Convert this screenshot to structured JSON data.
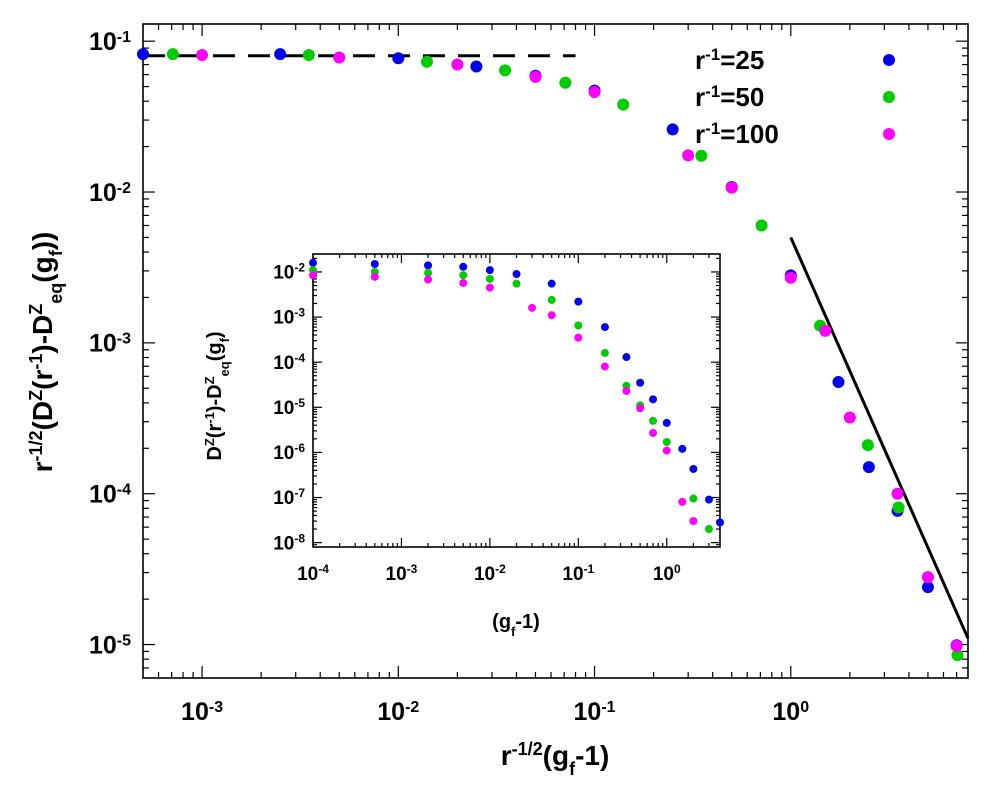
{
  "chart_data": [
    {
      "type": "scatter",
      "xscale": "log",
      "yscale": "log",
      "xlim": [
        0.0005,
        8
      ],
      "ylim": [
        6e-06,
        0.13
      ],
      "xticks": [
        0.001,
        0.01,
        0.1,
        1
      ],
      "xtick_labels": [
        {
          "base": "10",
          "exp": "-3"
        },
        {
          "base": "10",
          "exp": "-2"
        },
        {
          "base": "10",
          "exp": "-1"
        },
        {
          "base": "10",
          "exp": "0"
        }
      ],
      "yticks": [
        1e-05,
        0.0001,
        0.001,
        0.01,
        0.1
      ],
      "ytick_labels": [
        {
          "base": "10",
          "exp": "-5"
        },
        {
          "base": "10",
          "exp": "-4"
        },
        {
          "base": "10",
          "exp": "-3"
        },
        {
          "base": "10",
          "exp": "-2"
        },
        {
          "base": "10",
          "exp": "-1"
        }
      ],
      "xlabel": {
        "prefix": "r",
        "prefix_sup": "-1/2",
        "rest": "(g",
        "sub": "f",
        "tail": "-1)"
      },
      "ylabel_parts": [
        {
          "t": "r",
          "s": "n"
        },
        {
          "t": "-1/2",
          "s": "sup"
        },
        {
          "t": "(D",
          "s": "n"
        },
        {
          "t": "Z",
          "s": "sup"
        },
        {
          "t": "(r",
          "s": "n"
        },
        {
          "t": "-1",
          "s": "sup"
        },
        {
          "t": ")-D",
          "s": "n"
        },
        {
          "t": "Z",
          "s": "sup"
        },
        {
          "t": "eq",
          "s": "sub"
        },
        {
          "t": "(g",
          "s": "n"
        },
        {
          "t": "f",
          "s": "sub"
        },
        {
          "t": "))",
          "s": "n"
        }
      ],
      "legend_position": "top-right",
      "series": [
        {
          "name": "25",
          "legend_label": {
            "base": "r",
            "sup": "-1",
            "value": "=25"
          },
          "color": "#0000ee",
          "x": [
            0.0005,
            0.0025,
            0.01,
            0.025,
            0.05,
            0.1,
            0.25,
            0.5,
            1.0,
            1.75,
            2.5,
            3.5,
            5.0,
            7.0
          ],
          "y": [
            0.082,
            0.082,
            0.077,
            0.068,
            0.059,
            0.047,
            0.026,
            0.0108,
            0.0028,
            0.00055,
            0.00015,
            7.7e-05,
            2.4e-05,
            9.9e-06
          ]
        },
        {
          "name": "50",
          "legend_label": {
            "base": "r",
            "sup": "-1",
            "value": "=50"
          },
          "color": "#00cc00",
          "x": [
            0.00071,
            0.0035,
            0.014,
            0.035,
            0.071,
            0.14,
            0.35,
            0.71,
            1.41,
            2.47,
            3.54,
            7.07
          ],
          "y": [
            0.082,
            0.081,
            0.073,
            0.064,
            0.053,
            0.038,
            0.0174,
            0.006,
            0.0013,
            0.00021,
            8.1e-05,
            8.5e-06
          ]
        },
        {
          "name": "100",
          "legend_label": {
            "base": "r",
            "sup": "-1",
            "value": "=100"
          },
          "color": "#ff00ff",
          "x": [
            0.001,
            0.005,
            0.02,
            0.05,
            0.1,
            0.3,
            0.5,
            1.0,
            1.5,
            2.0,
            3.5,
            5.0,
            7.0
          ],
          "y": [
            0.081,
            0.078,
            0.07,
            0.058,
            0.046,
            0.0175,
            0.0107,
            0.0027,
            0.0012,
            0.00032,
            0.0001,
            2.8e-05,
            9.8e-06
          ]
        }
      ],
      "reference_lines": [
        {
          "style": "dashed",
          "x": [
            0.0005,
            0.08
          ],
          "y": [
            0.08,
            0.08
          ]
        },
        {
          "style": "solid",
          "x": [
            1.0,
            8.0
          ],
          "y": [
            0.005,
            1.1e-05
          ]
        }
      ]
    },
    {
      "type": "scatter",
      "inset": true,
      "xscale": "log",
      "yscale": "log",
      "xlim": [
        0.0001,
        4
      ],
      "ylim": [
        8e-09,
        0.025
      ],
      "xticks": [
        0.0001,
        0.001,
        0.01,
        0.1,
        1
      ],
      "xtick_labels": [
        {
          "base": "10",
          "exp": "-4"
        },
        {
          "base": "10",
          "exp": "-3"
        },
        {
          "base": "10",
          "exp": "-2"
        },
        {
          "base": "10",
          "exp": "-1"
        },
        {
          "base": "10",
          "exp": "0"
        }
      ],
      "yticks": [
        1e-08,
        1e-07,
        1e-06,
        1e-05,
        0.0001,
        0.001,
        0.01
      ],
      "ytick_labels": [
        {
          "base": "10",
          "exp": "-8"
        },
        {
          "base": "10",
          "exp": "-7"
        },
        {
          "base": "10",
          "exp": "-6"
        },
        {
          "base": "10",
          "exp": "-5"
        },
        {
          "base": "10",
          "exp": "-4"
        },
        {
          "base": "10",
          "exp": "-3"
        },
        {
          "base": "10",
          "exp": "-2"
        }
      ],
      "xlabel_parts": [
        {
          "t": "(g",
          "s": "n"
        },
        {
          "t": "f",
          "s": "sub"
        },
        {
          "t": "-1)",
          "s": "n"
        }
      ],
      "ylabel_parts": [
        {
          "t": "D",
          "s": "n"
        },
        {
          "t": "Z",
          "s": "sup"
        },
        {
          "t": "(r",
          "s": "n"
        },
        {
          "t": "-1",
          "s": "sup"
        },
        {
          "t": ")-D",
          "s": "n"
        },
        {
          "t": "Z",
          "s": "sup"
        },
        {
          "t": "eq",
          "s": "sub"
        },
        {
          "t": "(g",
          "s": "n"
        },
        {
          "t": "f",
          "s": "sub"
        },
        {
          "t": ")",
          "s": "n"
        }
      ],
      "series": [
        {
          "name": "25",
          "color": "#0000ee",
          "x": [
            0.0001,
            0.0005,
            0.002,
            0.005,
            0.01,
            0.02,
            0.05,
            0.1,
            0.2,
            0.35,
            0.5,
            0.7,
            1.0,
            1.5,
            2.0,
            3.0,
            4.0
          ],
          "y": [
            0.016,
            0.015,
            0.014,
            0.013,
            0.011,
            0.009,
            0.0055,
            0.0022,
            0.0006,
            0.00013,
            3.5e-05,
            1.5e-05,
            4.5e-06,
            1.2e-06,
            4.3e-07,
            9e-08,
            2.8e-08
          ]
        },
        {
          "name": "50",
          "color": "#00cc00",
          "x": [
            0.0001,
            0.0005,
            0.002,
            0.005,
            0.01,
            0.02,
            0.05,
            0.1,
            0.2,
            0.35,
            0.5,
            0.7,
            1.0,
            2.0,
            3.0
          ],
          "y": [
            0.011,
            0.01,
            0.0095,
            0.0085,
            0.007,
            0.0055,
            0.0024,
            0.00065,
            0.00016,
            3e-05,
            1.1e-05,
            5e-06,
            1.7e-06,
            9.5e-08,
            2e-08
          ]
        },
        {
          "name": "100",
          "color": "#ff00ff",
          "x": [
            0.0001,
            0.0005,
            0.002,
            0.005,
            0.01,
            0.03,
            0.05,
            0.1,
            0.2,
            0.35,
            0.5,
            0.7,
            1.0,
            1.5,
            2.0
          ],
          "y": [
            0.0085,
            0.0078,
            0.0068,
            0.0057,
            0.0045,
            0.0016,
            0.0011,
            0.00035,
            8e-05,
            2.3e-05,
            9.5e-06,
            2.7e-06,
            1.1e-06,
            8e-08,
            3e-08
          ]
        }
      ]
    }
  ]
}
